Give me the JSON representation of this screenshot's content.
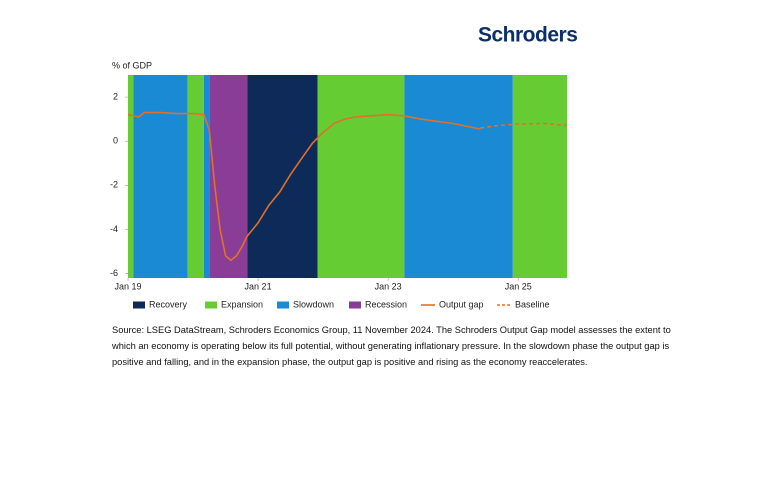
{
  "brand": "Schroders",
  "chart_data": {
    "type": "line",
    "ylabel": "% of GDP",
    "xlim": [
      "2019-01",
      "2025-10"
    ],
    "ylim": [
      -6.2,
      3
    ],
    "yticks": [
      2,
      0,
      -2,
      -4,
      -6
    ],
    "xticks": [
      {
        "value": "2019-01",
        "label": "Jan 19"
      },
      {
        "value": "2021-01",
        "label": "Jan 21"
      },
      {
        "value": "2023-01",
        "label": "Jan 23"
      },
      {
        "value": "2025-01",
        "label": "Jan 25"
      }
    ],
    "phase_legend": [
      {
        "name": "Recovery",
        "color": "#0d2a59"
      },
      {
        "name": "Expansion",
        "color": "#66cc33"
      },
      {
        "name": "Slowdown",
        "color": "#1a8ad4"
      },
      {
        "name": "Recession",
        "color": "#8a3d96"
      }
    ],
    "phases": [
      {
        "phase": "Expansion",
        "start": "2019-01",
        "end": "2019-02"
      },
      {
        "phase": "Slowdown",
        "start": "2019-02",
        "end": "2019-12"
      },
      {
        "phase": "Expansion",
        "start": "2019-12",
        "end": "2020-03"
      },
      {
        "phase": "Slowdown",
        "start": "2020-03",
        "end": "2020-04"
      },
      {
        "phase": "Recession",
        "start": "2020-04",
        "end": "2020-11"
      },
      {
        "phase": "Recovery",
        "start": "2020-11",
        "end": "2021-12"
      },
      {
        "phase": "Expansion",
        "start": "2021-12",
        "end": "2023-04"
      },
      {
        "phase": "Slowdown",
        "start": "2023-04",
        "end": "2024-12"
      },
      {
        "phase": "Expansion",
        "start": "2024-12",
        "end": "2025-10"
      }
    ],
    "series": [
      {
        "name": "Output gap",
        "color": "#e0702a",
        "dashed": false,
        "x": [
          "2019-01",
          "2019-03",
          "2019-04",
          "2019-07",
          "2019-10",
          "2020-01",
          "2020-03",
          "2020-04",
          "2020-05",
          "2020-06",
          "2020-07",
          "2020-08",
          "2020-09",
          "2020-10",
          "2020-11",
          "2021-01",
          "2021-03",
          "2021-05",
          "2021-07",
          "2021-09",
          "2021-11",
          "2022-01",
          "2022-03",
          "2022-05",
          "2022-07",
          "2022-10",
          "2023-01",
          "2023-04",
          "2023-07",
          "2023-10",
          "2024-01",
          "2024-04",
          "2024-06"
        ],
        "values": [
          1.2,
          1.1,
          1.3,
          1.3,
          1.25,
          1.25,
          1.2,
          0.5,
          -2,
          -4,
          -5.2,
          -5.4,
          -5.2,
          -4.8,
          -4.3,
          -3.7,
          -2.9,
          -2.3,
          -1.5,
          -0.8,
          -0.1,
          0.4,
          0.8,
          1.0,
          1.1,
          1.15,
          1.2,
          1.15,
          1.0,
          0.9,
          0.8,
          0.65,
          0.55
        ]
      },
      {
        "name": "Baseline",
        "color": "#e0702a",
        "dashed": true,
        "x": [
          "2024-06",
          "2024-09",
          "2025-01",
          "2025-06",
          "2025-10"
        ],
        "values": [
          0.6,
          0.7,
          0.78,
          0.8,
          0.7
        ]
      }
    ]
  },
  "note": "Source: LSEG DataStream, Schroders Economics Group, 11 November 2024. The Schroders Output Gap model assesses the extent to which an economy is operating below its full potential, without generating inflationary pressure. In the slowdown phase the output gap is positive and falling, and in the expansion phase, the output gap is positive and rising as the economy reaccelerates."
}
